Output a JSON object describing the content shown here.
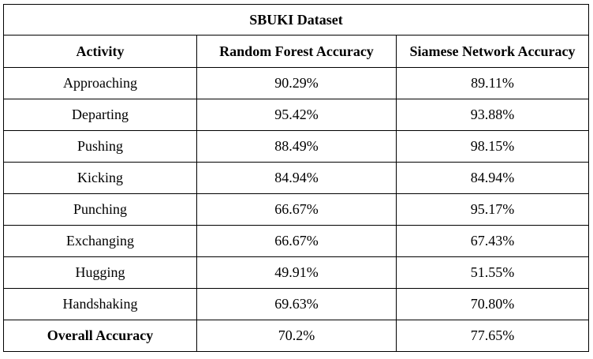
{
  "table": {
    "title": "SBUKI Dataset",
    "headers": [
      "Activity",
      "Random Forest Accuracy",
      "Siamese Network Accuracy"
    ],
    "rows": [
      {
        "activity": "Approaching",
        "rf": "90.29%",
        "siamese": "89.11%"
      },
      {
        "activity": "Departing",
        "rf": "95.42%",
        "siamese": "93.88%"
      },
      {
        "activity": "Pushing",
        "rf": "88.49%",
        "siamese": "98.15%"
      },
      {
        "activity": "Kicking",
        "rf": "84.94%",
        "siamese": "84.94%"
      },
      {
        "activity": "Punching",
        "rf": "66.67%",
        "siamese": "95.17%"
      },
      {
        "activity": "Exchanging",
        "rf": "66.67%",
        "siamese": "67.43%"
      },
      {
        "activity": "Hugging",
        "rf": "49.91%",
        "siamese": "51.55%"
      },
      {
        "activity": "Handshaking",
        "rf": "69.63%",
        "siamese": "70.80%"
      }
    ],
    "overall": {
      "activity": "Overall Accuracy",
      "rf": "70.2%",
      "siamese": "77.65%"
    }
  }
}
